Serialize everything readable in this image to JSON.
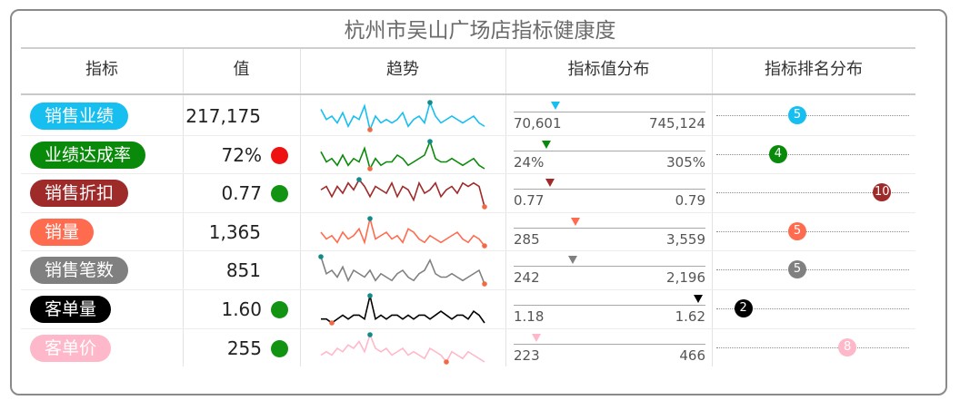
{
  "title": "杭州市吴山广场店指标健康度",
  "headers": {
    "metric": "指标",
    "value": "值",
    "trend": "趋势",
    "distribution": "指标值分布",
    "rank": "指标排名分布"
  },
  "rows": [
    {
      "metric": "销售业绩",
      "value": "217,175",
      "color": "#16bfef",
      "status": null,
      "dist_min": "70,601",
      "dist_max": "745,124",
      "marker_pos": 0.22,
      "rank": "5",
      "rank_pos": 0.42,
      "trend": [
        8,
        5,
        6,
        4,
        7,
        3,
        6,
        5,
        9,
        2,
        6,
        4,
        5,
        4,
        5,
        7,
        3,
        5,
        6,
        4,
        10,
        6,
        4,
        5,
        6,
        5,
        4,
        5,
        6,
        4,
        3
      ]
    },
    {
      "metric": "业绩达成率",
      "value": "72%",
      "color": "#0a8a0a",
      "status": "#ee1111",
      "dist_min": "24%",
      "dist_max": "305%",
      "marker_pos": 0.17,
      "rank": "4",
      "rank_pos": 0.32,
      "trend": [
        7,
        4,
        5,
        3,
        6,
        3,
        5,
        4,
        8,
        2,
        5,
        3,
        4,
        4,
        6,
        5,
        3,
        4,
        5,
        6,
        10,
        5,
        4,
        4,
        5,
        4,
        3,
        4,
        5,
        3,
        2
      ]
    },
    {
      "metric": "销售折扣",
      "value": "0.77",
      "color": "#9e2a2a",
      "status": "#129412",
      "dist_min": "0.77",
      "dist_max": "0.79",
      "marker_pos": 0.19,
      "rank": "10",
      "rank_pos": 0.86,
      "trend": [
        6,
        7,
        4,
        7,
        5,
        8,
        6,
        9,
        7,
        4,
        7,
        6,
        5,
        8,
        4,
        7,
        6,
        3,
        8,
        5,
        6,
        8,
        4,
        6,
        7,
        5,
        8,
        7,
        8,
        7,
        1
      ]
    },
    {
      "metric": "销量",
      "value": "1,365",
      "color": "#ff6b4f",
      "status": null,
      "dist_min": "285",
      "dist_max": "3,559",
      "marker_pos": 0.32,
      "rank": "5",
      "rank_pos": 0.42,
      "trend": [
        6,
        4,
        5,
        3,
        6,
        4,
        5,
        7,
        3,
        10,
        4,
        5,
        6,
        4,
        5,
        3,
        7,
        6,
        4,
        3,
        5,
        4,
        3,
        4,
        5,
        6,
        4,
        3,
        5,
        4,
        2
      ]
    },
    {
      "metric": "销售笔数",
      "value": "851",
      "color": "#808080",
      "status": null,
      "dist_min": "242",
      "dist_max": "2,196",
      "marker_pos": 0.31,
      "rank": "5",
      "rank_pos": 0.42,
      "trend": [
        10,
        5,
        6,
        4,
        7,
        3,
        6,
        5,
        4,
        6,
        3,
        5,
        4,
        3,
        5,
        6,
        4,
        3,
        5,
        6,
        9,
        5,
        4,
        4,
        5,
        4,
        3,
        4,
        5,
        6,
        2
      ]
    },
    {
      "metric": "客单量",
      "value": "1.60",
      "color": "#000000",
      "status": "#129412",
      "dist_min": "1.18",
      "dist_max": "1.62",
      "marker_pos": 0.96,
      "rank": "2",
      "rank_pos": 0.14,
      "trend": [
        4,
        4,
        3,
        4,
        5,
        4,
        5,
        5,
        4,
        10,
        4,
        5,
        4,
        5,
        5,
        4,
        5,
        4,
        5,
        5,
        4,
        5,
        6,
        5,
        4,
        5,
        5,
        4,
        6,
        5,
        3
      ]
    },
    {
      "metric": "客单价",
      "value": "255",
      "color": "#ffb8c9",
      "status": "#129412",
      "dist_min": "223",
      "dist_max": "466",
      "marker_pos": 0.12,
      "rank": "8",
      "rank_pos": 0.68,
      "trend": [
        4,
        5,
        4,
        6,
        5,
        7,
        6,
        8,
        5,
        10,
        6,
        5,
        6,
        4,
        5,
        6,
        4,
        5,
        4,
        3,
        6,
        5,
        4,
        2,
        5,
        4,
        3,
        5,
        4,
        3,
        2
      ]
    }
  ]
}
